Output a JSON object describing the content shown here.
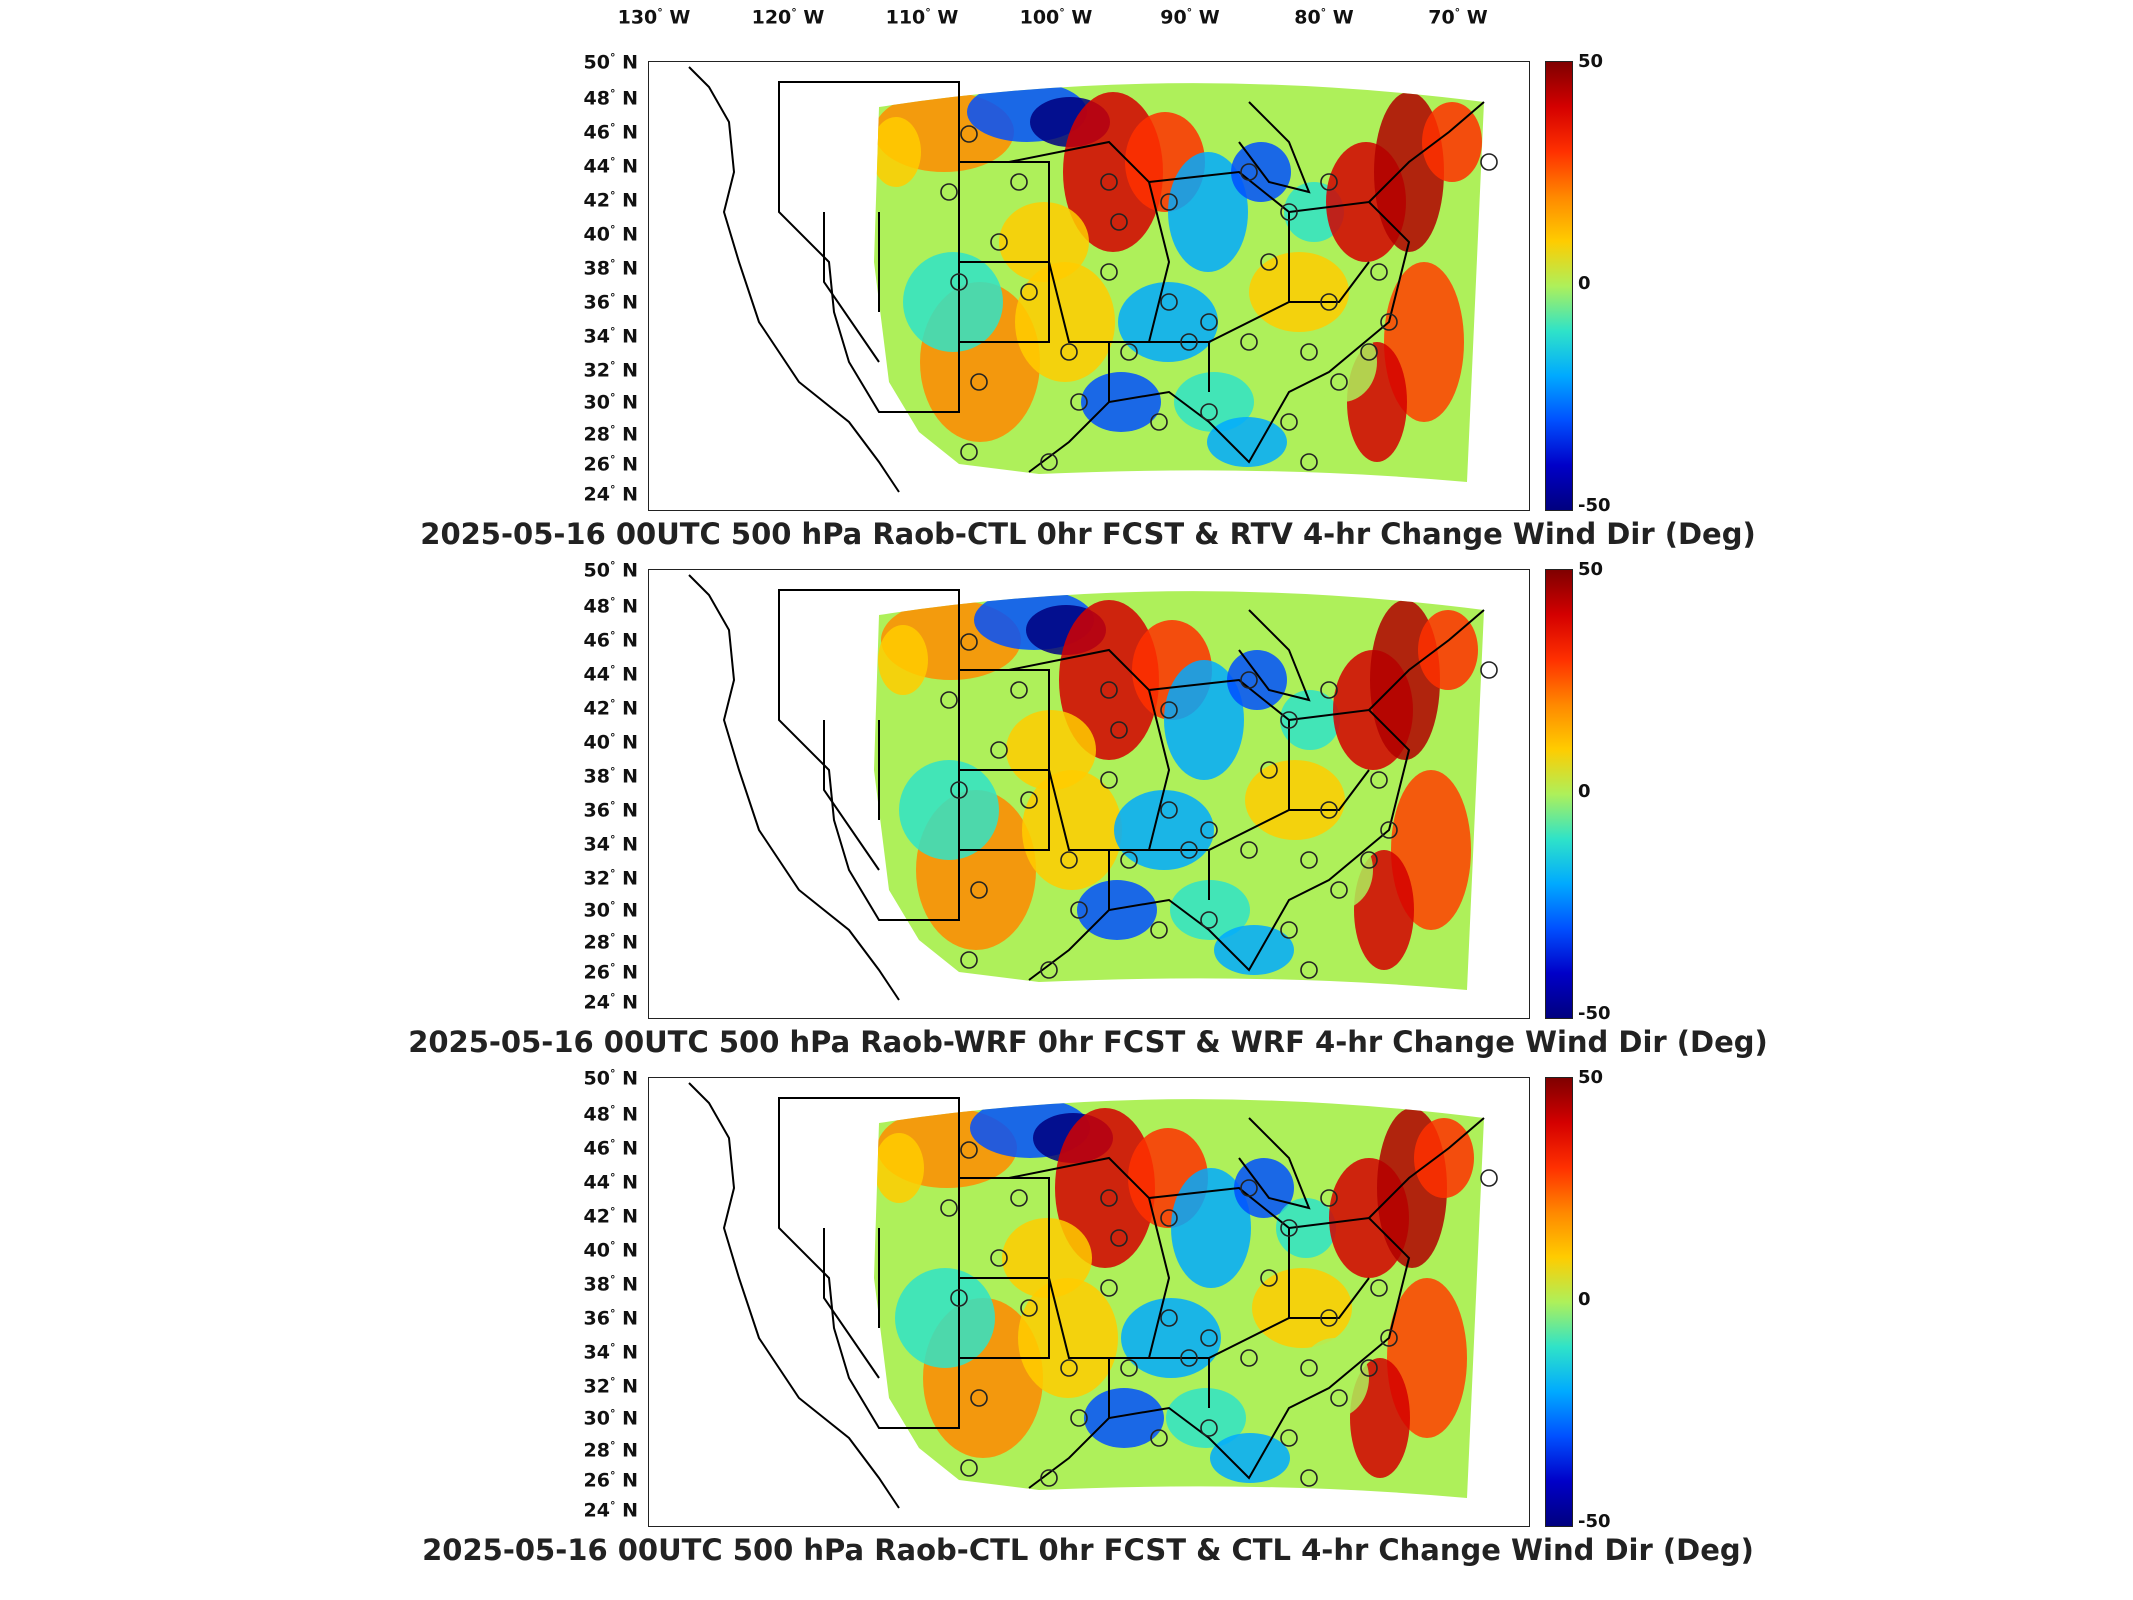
{
  "longitude_labels": [
    "130",
    "120",
    "110",
    "100",
    "90",
    "80",
    "70"
  ],
  "longitude_suffix": "W",
  "latitude_labels": [
    "50",
    "48",
    "46",
    "44",
    "42",
    "40",
    "38",
    "36",
    "34",
    "32",
    "30",
    "28",
    "26",
    "24"
  ],
  "latitude_suffix": "N",
  "colorbar": {
    "max_label": "50",
    "mid_label": "0",
    "min_label": "-50",
    "range": [
      -50,
      50
    ]
  },
  "panels": [
    {
      "title": "2025-05-16 00UTC 500 hPa Raob-CTL 0hr FCST & RTV 4-hr Change Wind Dir (Deg)"
    },
    {
      "title": "2025-05-16 00UTC 500 hPa Raob-WRF 0hr FCST & WRF 4-hr Change Wind Dir (Deg)"
    },
    {
      "title": "2025-05-16 00UTC 500 hPa Raob-CTL 0hr FCST & CTL 4-hr Change Wind Dir (Deg)"
    }
  ],
  "colors": {
    "positive_max": "#7f0000",
    "zero": "#aef05a",
    "negative_max": "#00007f"
  }
}
